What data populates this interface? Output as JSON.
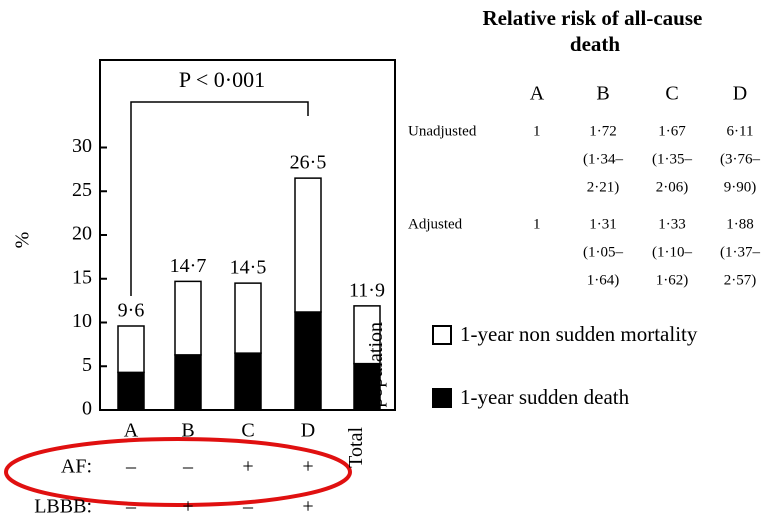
{
  "chart_data": {
    "type": "stacked-bar",
    "categories": [
      "A",
      "B",
      "C",
      "D",
      "Total population"
    ],
    "series": [
      {
        "name": "1-year sudden death",
        "color": "#000000",
        "values": [
          4.3,
          6.3,
          6.5,
          11.2,
          5.3
        ]
      },
      {
        "name": "1-year non sudden mortality",
        "color": "#ffffff",
        "values": [
          5.3,
          8.4,
          8.0,
          15.3,
          6.6
        ]
      }
    ],
    "totals": {
      "values": [
        9.6,
        14.7,
        14.5,
        26.5,
        11.9
      ],
      "value_labels": [
        "9·6",
        "14·7",
        "14·5",
        "26·5",
        "11·9"
      ]
    },
    "ylabel": "%",
    "ylim": [
      0,
      40
    ],
    "yticks": [
      0,
      5,
      10,
      15,
      20,
      25,
      30
    ],
    "annotation": "P < 0·001",
    "conditions": [
      {
        "name": "AF:",
        "values": [
          "–",
          "–",
          "+",
          "+"
        ]
      },
      {
        "name": "LBBB:",
        "values": [
          "–",
          "+",
          "–",
          "+"
        ]
      }
    ]
  },
  "risk_table": {
    "title": "Relative risk of all-cause death",
    "columns": [
      "A",
      "B",
      "C",
      "D"
    ],
    "rows": [
      {
        "label": "Unadjusted",
        "cells": [
          [
            "1"
          ],
          [
            "1·72",
            "(1·34–",
            "2·21)"
          ],
          [
            "1·67",
            "(1·35–",
            "2·06)"
          ],
          [
            "6·11",
            "(3·76–",
            "9·90)"
          ]
        ]
      },
      {
        "label": "Adjusted",
        "cells": [
          [
            "1"
          ],
          [
            "1·31",
            "(1·05–",
            "1·64)"
          ],
          [
            "1·33",
            "(1·10–",
            "1·62)"
          ],
          [
            "1·88",
            "(1·37–",
            "2·57)"
          ]
        ]
      }
    ]
  }
}
